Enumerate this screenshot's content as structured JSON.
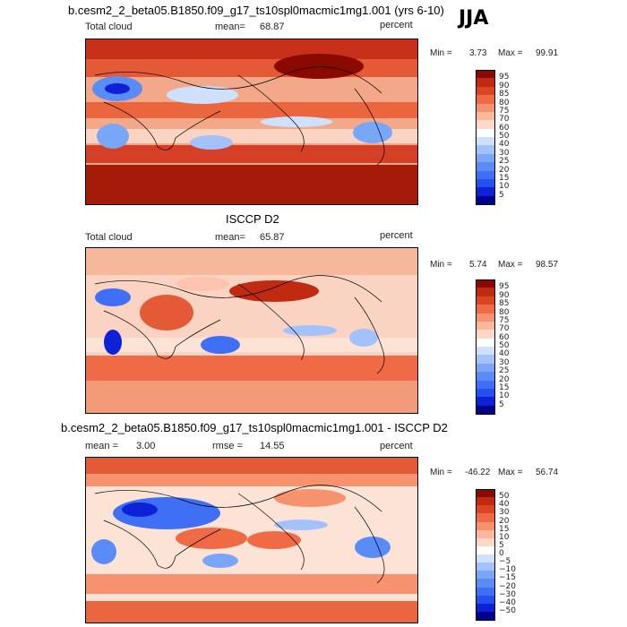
{
  "season": "JJA",
  "panels": [
    {
      "title": "b.cesm2_2_beta05.B1850.f09_g17_ts10spl0macmic1mg1.001 (yrs 6-10)",
      "left_label": "Total cloud",
      "mean_label": "mean=",
      "mean_value": "68.87",
      "unit": "percent",
      "min_label": "Min =",
      "min_value": "3.73",
      "max_label": "Max =",
      "max_value": "99.91"
    },
    {
      "title": "ISCCP D2",
      "left_label": "Total cloud",
      "mean_label": "mean=",
      "mean_value": "65.87",
      "unit": "percent",
      "min_label": "Min =",
      "min_value": "5.74",
      "max_label": "Max =",
      "max_value": "98.57"
    },
    {
      "title": "b.cesm2_2_beta05.B1850.f09_g17_ts10spl0macmic1mg1.001 - ISCCP D2",
      "mean_label": "mean =",
      "mean_value": "3.00",
      "rmse_label": "rmse =",
      "rmse_value": "14.55",
      "unit": "percent",
      "min_label": "Min =",
      "min_value": "-46.22",
      "max_label": "Max =",
      "max_value": "56.74"
    }
  ],
  "chart_data": [
    {
      "type": "heatmap",
      "title": "b.cesm2_2_beta05.B1850.f09_g17_ts10spl0macmic1mg1.001 (yrs 6-10)",
      "variable": "Total cloud",
      "unit": "percent",
      "mean": 68.87,
      "min": 3.73,
      "max": 99.91,
      "colorbar_levels": [
        5,
        10,
        15,
        20,
        25,
        30,
        40,
        50,
        60,
        70,
        75,
        80,
        85,
        90,
        95
      ],
      "colorbar_labels": [
        "95",
        "90",
        "85",
        "80",
        "75",
        "70",
        "60",
        "50",
        "40",
        "30",
        "25",
        "20",
        "15",
        "10",
        "5"
      ],
      "colors": [
        "#00008b",
        "#0d22d6",
        "#2450f0",
        "#3e6ff5",
        "#5a8cf7",
        "#7aa6f8",
        "#a3c2fb",
        "#cfe0fd",
        "#ffffff",
        "#fdd8c8",
        "#fbb79c",
        "#f7926f",
        "#f06a45",
        "#dc4524",
        "#c02a10",
        "#8b0a00"
      ]
    },
    {
      "type": "heatmap",
      "title": "ISCCP D2",
      "variable": "Total cloud",
      "unit": "percent",
      "mean": 65.87,
      "min": 5.74,
      "max": 98.57,
      "colorbar_levels": [
        5,
        10,
        15,
        20,
        25,
        30,
        40,
        50,
        60,
        70,
        75,
        80,
        85,
        90,
        95
      ],
      "colorbar_labels": [
        "95",
        "90",
        "85",
        "80",
        "75",
        "70",
        "60",
        "50",
        "40",
        "30",
        "25",
        "20",
        "15",
        "10",
        "5"
      ],
      "colors": [
        "#00008b",
        "#0d22d6",
        "#2450f0",
        "#3e6ff5",
        "#5a8cf7",
        "#7aa6f8",
        "#a3c2fb",
        "#cfe0fd",
        "#ffffff",
        "#fdd8c8",
        "#fbb79c",
        "#f7926f",
        "#f06a45",
        "#dc4524",
        "#c02a10",
        "#8b0a00"
      ]
    },
    {
      "type": "heatmap",
      "title": "b.cesm2_2_beta05.B1850.f09_g17_ts10spl0macmic1mg1.001 - ISCCP D2",
      "unit": "percent",
      "mean": 3.0,
      "rmse": 14.55,
      "min": -46.22,
      "max": 56.74,
      "colorbar_levels": [
        -50,
        -40,
        -30,
        -20,
        -15,
        -10,
        -5,
        0,
        5,
        10,
        15,
        20,
        30,
        40,
        50
      ],
      "colorbar_labels": [
        "50",
        "40",
        "30",
        "20",
        "15",
        "10",
        "5",
        "0",
        "−5",
        "−10",
        "−15",
        "−20",
        "−30",
        "−40",
        "−50"
      ],
      "colors": [
        "#00008b",
        "#0d22d6",
        "#2450f0",
        "#3e6ff5",
        "#5a8cf7",
        "#7aa6f8",
        "#a3c2fb",
        "#cfe0fd",
        "#ffffff",
        "#fdd8c8",
        "#fbb79c",
        "#f7926f",
        "#f06a45",
        "#dc4524",
        "#c02a10",
        "#8b0a00"
      ]
    }
  ]
}
